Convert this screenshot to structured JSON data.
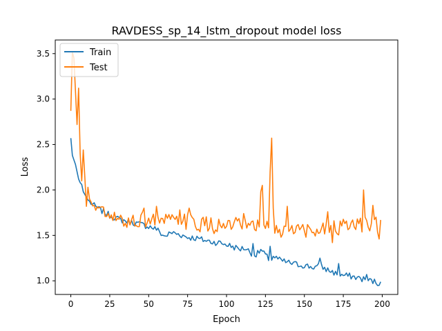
{
  "chart_data": {
    "type": "line",
    "title": "RAVDESS_sp_14_lstm_dropout model loss",
    "xlabel": "Epoch",
    "ylabel": "Loss",
    "xlim": [
      -10,
      210
    ],
    "ylim": [
      0.85,
      3.65
    ],
    "xticks": [
      0,
      25,
      50,
      75,
      100,
      125,
      150,
      175,
      200
    ],
    "yticks": [
      1.0,
      1.5,
      2.0,
      2.5,
      3.0,
      3.5
    ],
    "grid": false,
    "legend_position": "top-left",
    "series": [
      {
        "name": "Train",
        "color": "#1f77b4",
        "keypoints": [
          [
            0,
            2.57
          ],
          [
            1,
            2.38
          ],
          [
            2,
            2.33
          ],
          [
            3,
            2.28
          ],
          [
            4,
            2.2
          ],
          [
            5,
            2.12
          ],
          [
            6,
            2.08
          ],
          [
            7,
            2.06
          ],
          [
            8,
            1.98
          ],
          [
            9,
            1.95
          ],
          [
            10,
            1.92
          ],
          [
            11,
            1.89
          ],
          [
            12,
            1.87
          ],
          [
            14,
            1.84
          ],
          [
            16,
            1.81
          ],
          [
            18,
            1.79
          ],
          [
            20,
            1.77
          ],
          [
            22,
            1.75
          ],
          [
            25,
            1.72
          ],
          [
            28,
            1.7
          ],
          [
            30,
            1.68
          ],
          [
            35,
            1.66
          ],
          [
            40,
            1.64
          ],
          [
            45,
            1.62
          ],
          [
            50,
            1.6
          ],
          [
            55,
            1.57
          ],
          [
            58,
            1.52
          ],
          [
            60,
            1.49
          ],
          [
            65,
            1.53
          ],
          [
            70,
            1.51
          ],
          [
            75,
            1.48
          ],
          [
            80,
            1.47
          ],
          [
            85,
            1.45
          ],
          [
            90,
            1.43
          ],
          [
            95,
            1.42
          ],
          [
            100,
            1.4
          ],
          [
            105,
            1.37
          ],
          [
            108,
            1.35
          ],
          [
            112,
            1.36
          ],
          [
            115,
            1.32
          ],
          [
            118,
            1.28
          ],
          [
            120,
            1.3
          ],
          [
            122,
            1.34
          ],
          [
            125,
            1.28
          ],
          [
            128,
            1.22
          ],
          [
            130,
            1.27
          ],
          [
            135,
            1.22
          ],
          [
            140,
            1.2
          ],
          [
            145,
            1.18
          ],
          [
            150,
            1.17
          ],
          [
            155,
            1.15
          ],
          [
            160,
            1.16
          ],
          [
            165,
            1.12
          ],
          [
            168,
            1.1
          ],
          [
            170,
            1.08
          ],
          [
            175,
            1.06
          ],
          [
            180,
            1.05
          ],
          [
            185,
            1.03
          ],
          [
            190,
            1.01
          ],
          [
            195,
            0.99
          ],
          [
            198,
            0.97
          ],
          [
            199,
            1.02
          ]
        ],
        "amplitude": 0.035,
        "spikes": [
          [
            117,
            1.41
          ],
          [
            128,
            1.38
          ],
          [
            160,
            1.25
          ],
          [
            172,
            1.19
          ],
          [
            190,
            1.07
          ]
        ]
      },
      {
        "name": "Test",
        "color": "#ff7f0e",
        "keypoints": [
          [
            0,
            2.87
          ],
          [
            1,
            3.52
          ],
          [
            2,
            3.45
          ],
          [
            3,
            3.08
          ],
          [
            4,
            2.72
          ],
          [
            5,
            3.12
          ],
          [
            6,
            2.4
          ],
          [
            7,
            2.1
          ],
          [
            8,
            2.44
          ],
          [
            9,
            2.14
          ],
          [
            10,
            1.82
          ],
          [
            11,
            2.03
          ],
          [
            12,
            1.9
          ],
          [
            13,
            1.8
          ],
          [
            15,
            1.86
          ],
          [
            18,
            1.79
          ],
          [
            20,
            1.76
          ],
          [
            22,
            1.72
          ],
          [
            25,
            1.69
          ],
          [
            30,
            1.67
          ],
          [
            35,
            1.65
          ],
          [
            40,
            1.66
          ],
          [
            45,
            1.67
          ],
          [
            50,
            1.68
          ],
          [
            55,
            1.67
          ],
          [
            60,
            1.66
          ],
          [
            65,
            1.65
          ],
          [
            70,
            1.66
          ],
          [
            75,
            1.65
          ],
          [
            80,
            1.63
          ],
          [
            85,
            1.62
          ],
          [
            90,
            1.61
          ],
          [
            95,
            1.6
          ],
          [
            100,
            1.6
          ],
          [
            105,
            1.61
          ],
          [
            110,
            1.6
          ],
          [
            115,
            1.58
          ],
          [
            120,
            1.6
          ],
          [
            125,
            1.58
          ],
          [
            130,
            1.58
          ],
          [
            135,
            1.56
          ],
          [
            140,
            1.57
          ],
          [
            145,
            1.57
          ],
          [
            150,
            1.57
          ],
          [
            155,
            1.57
          ],
          [
            160,
            1.58
          ],
          [
            165,
            1.58
          ],
          [
            170,
            1.58
          ],
          [
            175,
            1.59
          ],
          [
            180,
            1.59
          ],
          [
            185,
            1.6
          ],
          [
            190,
            1.62
          ],
          [
            195,
            1.6
          ],
          [
            199,
            1.62
          ]
        ],
        "amplitude": 0.09,
        "spikes": [
          [
            5,
            3.12
          ],
          [
            8,
            2.44
          ],
          [
            11,
            2.03
          ],
          [
            47,
            1.8
          ],
          [
            55,
            1.82
          ],
          [
            70,
            1.78
          ],
          [
            76,
            1.8
          ],
          [
            111,
            1.74
          ],
          [
            122,
            1.98
          ],
          [
            123,
            2.05
          ],
          [
            128,
            2.2
          ],
          [
            129,
            2.57
          ],
          [
            130,
            1.8
          ],
          [
            135,
            1.48
          ],
          [
            139,
            1.82
          ],
          [
            151,
            1.48
          ],
          [
            165,
            1.76
          ],
          [
            168,
            1.42
          ],
          [
            188,
            2.0
          ],
          [
            192,
            1.55
          ],
          [
            194,
            1.83
          ],
          [
            196,
            1.7
          ],
          [
            198,
            1.46
          ]
        ]
      }
    ]
  }
}
